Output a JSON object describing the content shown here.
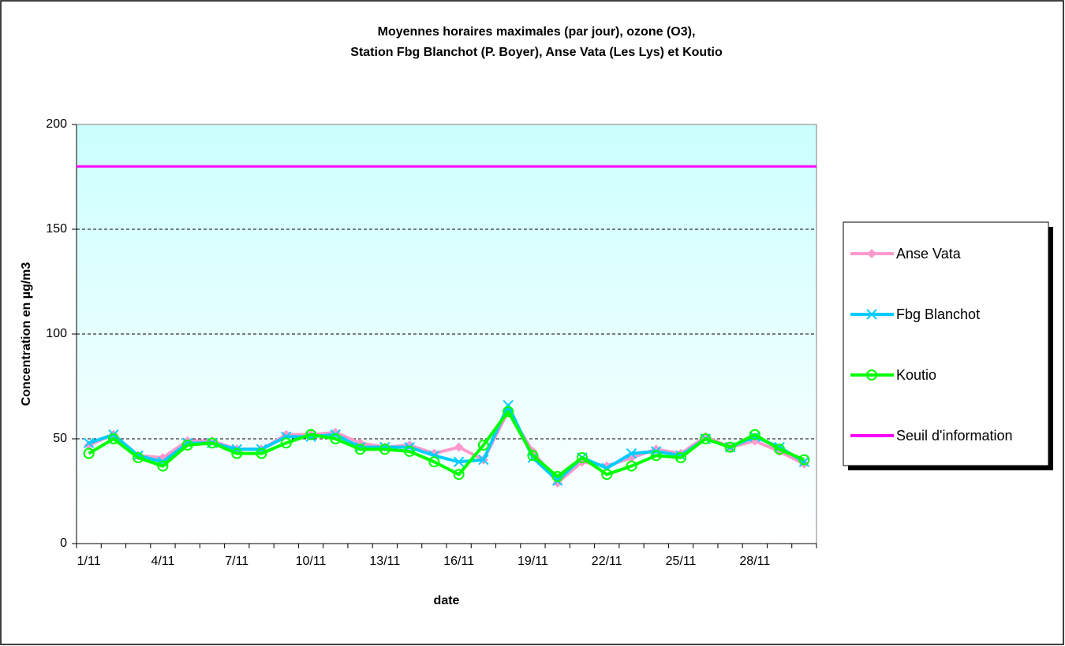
{
  "chart_data": {
    "type": "line",
    "title": [
      "Moyennes horaires maximales (par jour), ozone (O3),",
      "Station Fbg Blanchot (P. Boyer), Anse Vata (Les Lys) et Koutio"
    ],
    "xlabel": "date",
    "ylabel": "Concentration en µg/m3",
    "categories": [
      "1/11",
      null,
      null,
      "4/11",
      null,
      null,
      "7/11",
      null,
      null,
      "10/11",
      null,
      null,
      "13/11",
      null,
      null,
      "16/11",
      null,
      null,
      "19/11",
      null,
      null,
      "22/11",
      null,
      null,
      "25/11",
      null,
      null,
      "28/11",
      null,
      null
    ],
    "series": [
      {
        "name": "Anse Vata",
        "color": "#ff99cc",
        "marker": "diamond",
        "values": [
          47,
          52,
          42,
          41,
          49,
          49,
          45,
          45,
          52,
          52,
          53,
          48,
          46,
          47,
          43,
          46,
          40,
          63,
          44,
          29,
          39,
          37,
          41,
          45,
          43,
          51,
          46,
          49,
          44,
          38
        ]
      },
      {
        "name": "Fbg Blanchot",
        "color": "#00ccff",
        "marker": "x",
        "values": [
          48,
          52,
          42,
          39,
          48,
          48,
          45,
          45,
          51,
          51,
          52,
          46,
          46,
          46,
          42,
          39,
          40,
          66,
          41,
          30,
          41,
          36,
          43,
          44,
          42,
          50,
          46,
          51,
          46,
          39
        ]
      },
      {
        "name": "Koutio",
        "color": "#00ff00",
        "marker": "circle",
        "values": [
          43,
          50,
          41,
          37,
          47,
          48,
          43,
          43,
          48,
          52,
          50,
          45,
          45,
          44,
          39,
          33,
          47,
          63,
          42,
          32,
          41,
          33,
          37,
          42,
          41,
          50,
          46,
          52,
          45,
          40
        ]
      },
      {
        "name": "Seuil d'information",
        "color": "#ff00ff",
        "marker": "none",
        "values": [
          180,
          180,
          180,
          180,
          180,
          180,
          180,
          180,
          180,
          180,
          180,
          180,
          180,
          180,
          180,
          180,
          180,
          180,
          180,
          180,
          180,
          180,
          180,
          180,
          180,
          180,
          180,
          180,
          180,
          180
        ]
      }
    ],
    "ylim": [
      0,
      200
    ],
    "yticks": [
      0,
      50,
      100,
      150,
      200
    ],
    "grid": true,
    "legend": "right"
  }
}
